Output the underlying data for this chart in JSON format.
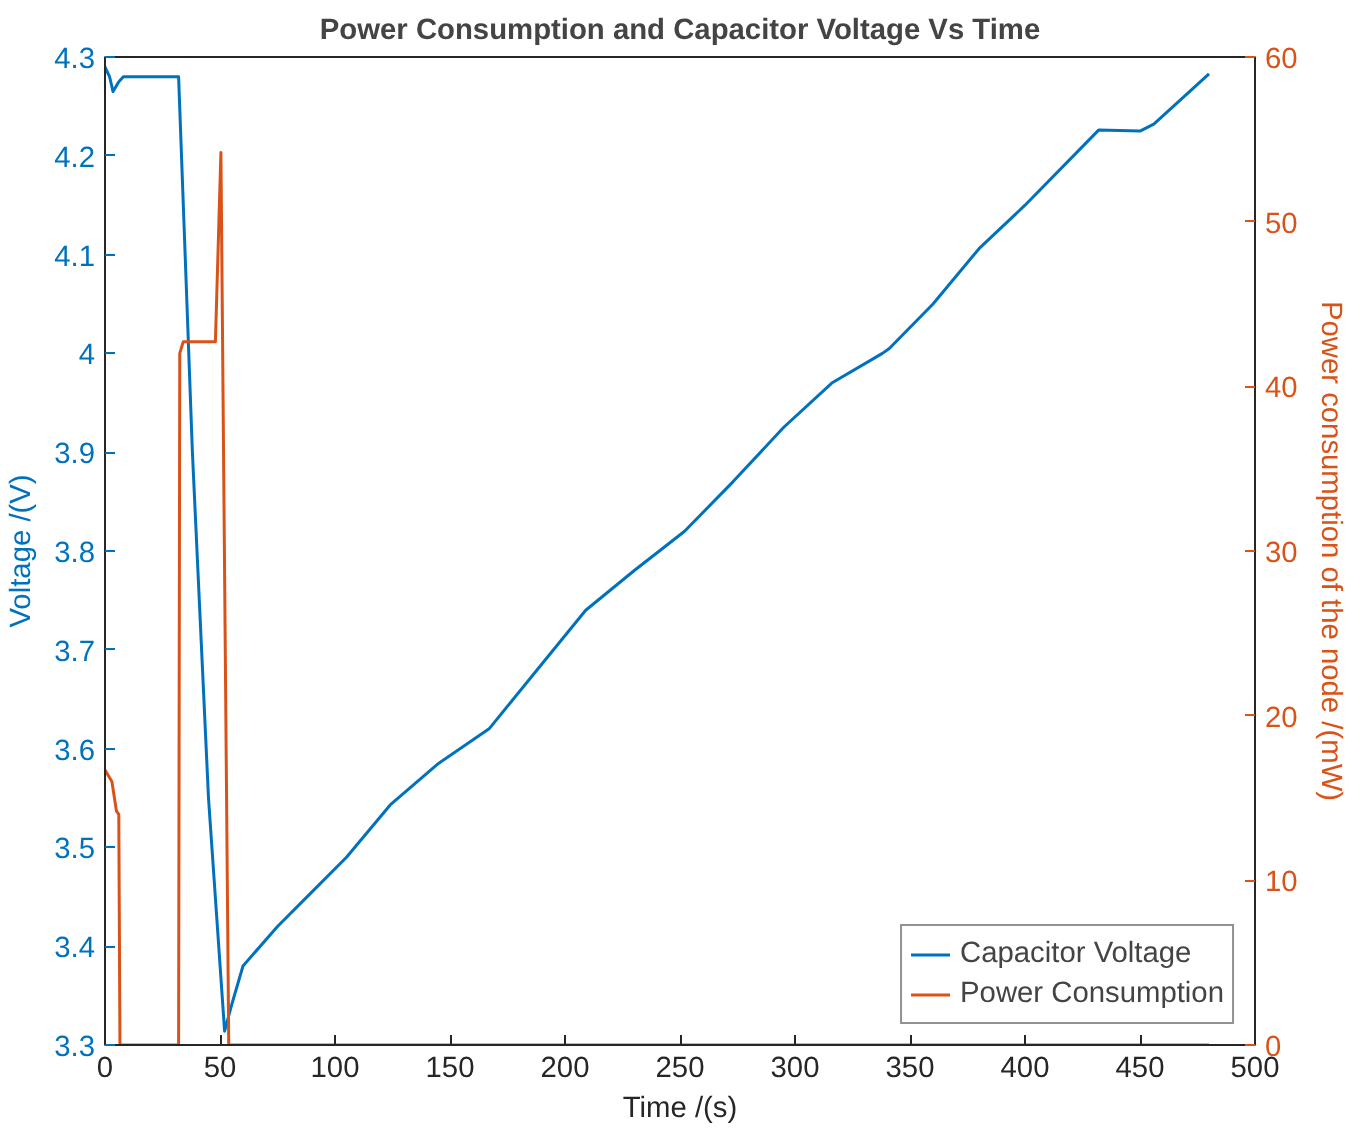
{
  "chart_data": {
    "type": "line",
    "title": "Power Consumption and Capacitor Voltage Vs Time",
    "xlabel": "Time /(s)",
    "ylabel": "Voltage /(V)",
    "y2label": "Power consumption of the node /(mW)",
    "xlim": [
      0,
      500
    ],
    "xticks": [
      0,
      50,
      100,
      150,
      200,
      250,
      300,
      350,
      400,
      450,
      500
    ],
    "ylim": [
      3.3,
      4.3
    ],
    "yticks": [
      3.3,
      3.4,
      3.5,
      3.6,
      3.7,
      3.8,
      3.9,
      4,
      4.1,
      4.2,
      4.3
    ],
    "y2lim": [
      0,
      60
    ],
    "y2ticks": [
      0,
      10,
      20,
      30,
      40,
      50,
      60
    ],
    "legend": "bottom right",
    "grid": false,
    "series": [
      {
        "name": "Capacitor Voltage",
        "color": "#0072bd",
        "x": [
          0,
          2,
          3.5,
          6,
          8,
          32,
          38,
          45,
          52,
          55,
          60,
          75,
          90,
          105,
          124,
          145,
          167,
          188,
          209,
          230,
          252,
          273,
          295,
          316,
          338,
          341,
          360,
          380,
          400,
          432,
          450,
          456,
          480
        ],
        "values": [
          4.29,
          4.28,
          4.265,
          4.275,
          4.28,
          4.28,
          3.9,
          3.55,
          3.314,
          3.34,
          3.38,
          3.42,
          3.455,
          3.49,
          3.543,
          3.585,
          3.62,
          3.68,
          3.74,
          3.78,
          3.82,
          3.87,
          3.925,
          3.97,
          4.0,
          4.005,
          4.05,
          4.106,
          4.15,
          4.226,
          4.225,
          4.232,
          4.283
        ]
      },
      {
        "name": "Power Consumption",
        "color": "#d95319",
        "axis": "y2",
        "x": [
          0,
          3,
          5,
          6,
          6.5,
          32,
          32.5,
          34,
          48,
          50.4,
          53.8,
          480
        ],
        "values": [
          16.7,
          16,
          14.2,
          14,
          0,
          0,
          42,
          42.7,
          42.7,
          54.2,
          0,
          0
        ]
      }
    ]
  }
}
